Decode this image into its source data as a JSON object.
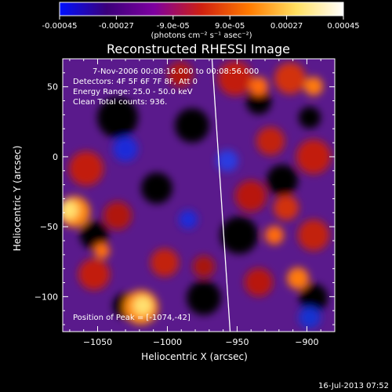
{
  "colorbar": {
    "ticks": [
      "-0.00045",
      "-0.00027",
      "-9.0e-05",
      "9.0e-05",
      "0.00027",
      "0.00045"
    ],
    "values": [
      -0.00045,
      -0.00027,
      -9e-05,
      9e-05,
      0.00027,
      0.00045
    ],
    "range": [
      -0.00045,
      0.00045
    ],
    "units": "(photons cm⁻² s⁻¹ asec⁻²)",
    "colors": [
      "#0010ff",
      "#3b007a",
      "#7e00a0",
      "#d02010",
      "#ff7a00",
      "#ffe060",
      "#ffffff"
    ]
  },
  "chart_data": {
    "type": "heatmap",
    "title": "Reconstructed RHESSI Image",
    "xlabel": "Heliocentric X (arcsec)",
    "ylabel": "Heliocentric Y (arcsec)",
    "xlim": [
      -1075,
      -880
    ],
    "ylim": [
      -125,
      70
    ],
    "xticks": [
      -1050,
      -1000,
      -950,
      -900
    ],
    "yticks": [
      -100,
      -50,
      0,
      50
    ],
    "annotations": [
      "7-Nov-2006 00:08:16.000 to 00:08:56.000",
      "Detectors: 4F 5F 6F 7F 8F, Att 0",
      "Energy Range: 25.0 - 50.0 keV",
      "Clean     Total counts: 936.",
      "Position of Peak = [-1074,-42]"
    ],
    "limb": [
      [
        -968,
        70
      ],
      [
        -955,
        -125
      ]
    ],
    "peak": [
      -1074,
      -42
    ]
  },
  "footer": {
    "timestamp": "16-Jul-2013 07:52"
  }
}
